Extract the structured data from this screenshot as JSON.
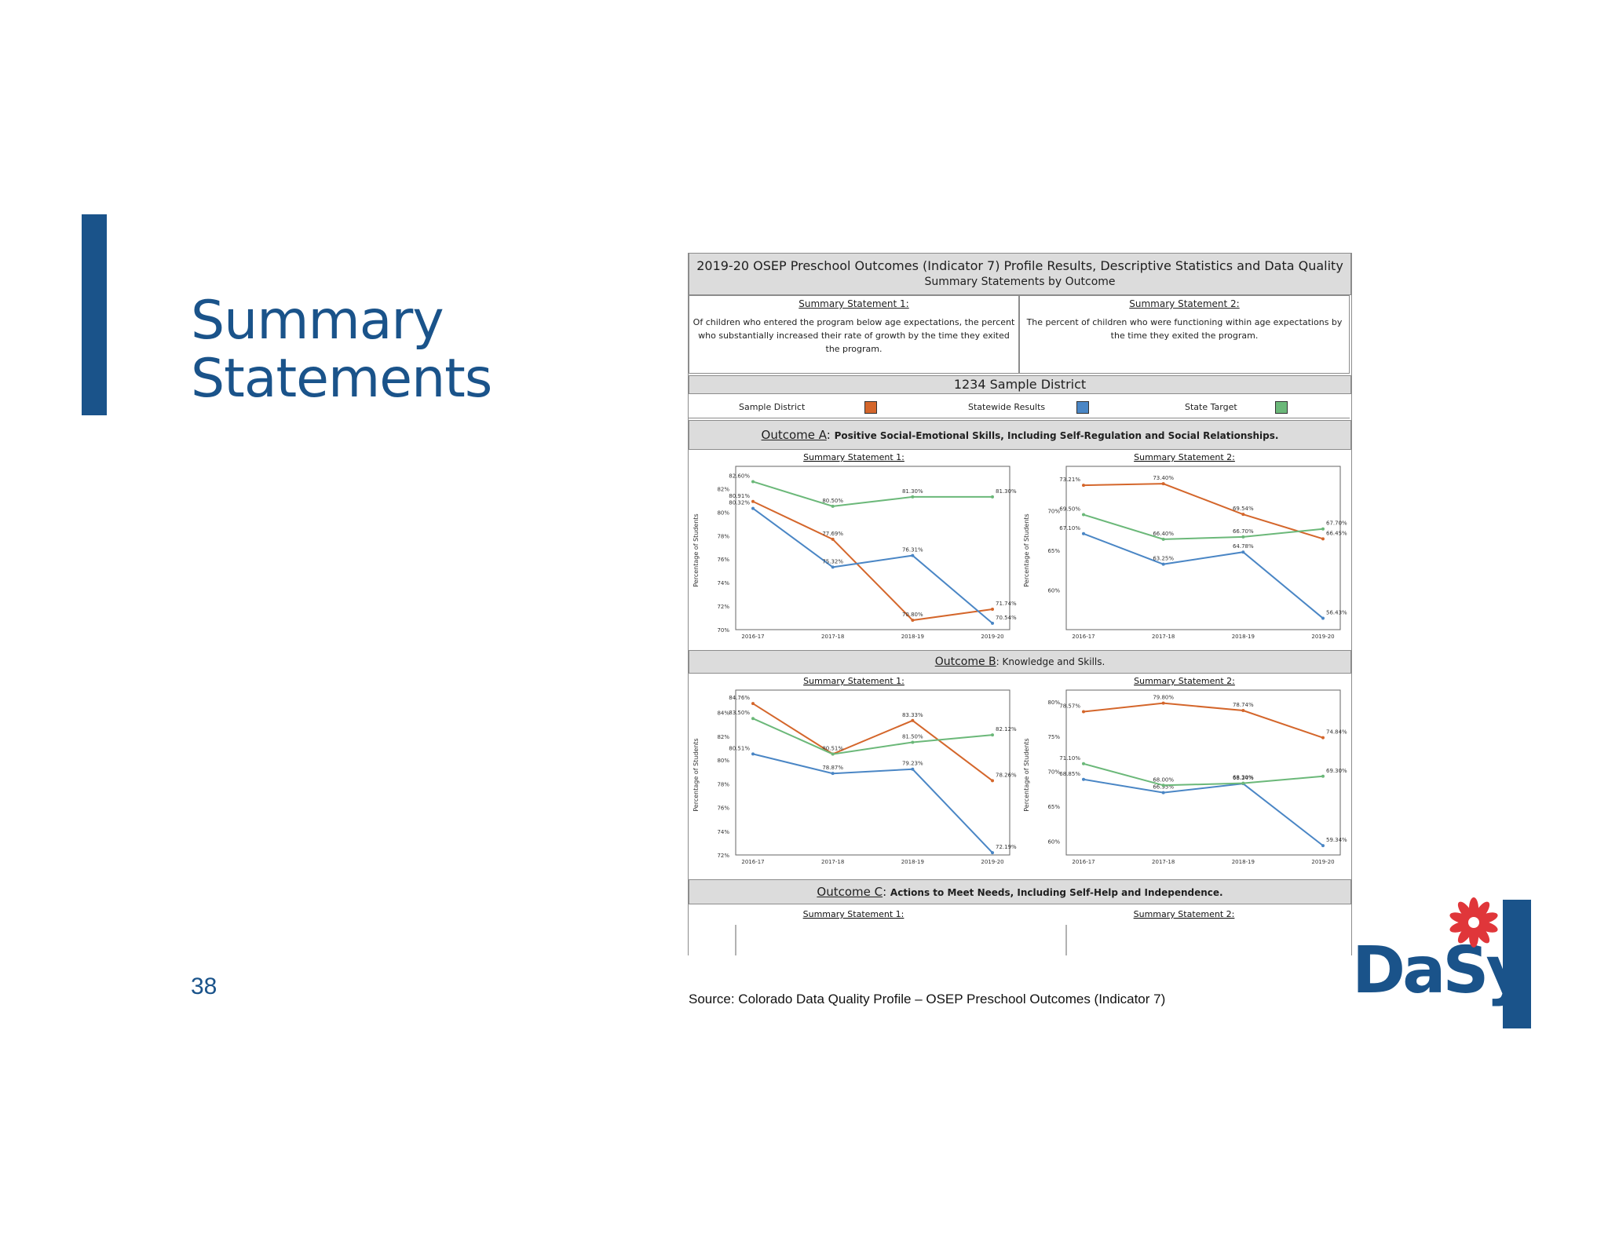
{
  "colors": {
    "brand_blue": "#1a538a",
    "district": "#d4662b",
    "statewide": "#4a86c5",
    "target": "#6bb879",
    "panel_gray": "#dcdcdc",
    "flower_red": "#e0363a"
  },
  "slide": {
    "title_line1": "Summary",
    "title_line2": "Statements",
    "page_number": "38",
    "source": "Source: Colorado Data Quality Profile – OSEP Preschool Outcomes (Indicator 7)",
    "logo_text": "DaSy"
  },
  "report": {
    "title_line1": "2019-20 OSEP Preschool Outcomes (Indicator 7) Profile Results, Descriptive Statistics and Data Quality",
    "title_line2": "Summary Statements by Outcome",
    "statement1_heading": "Summary Statement 1:",
    "statement1_text": "Of children who entered the program below age expectations, the percent who substantially increased their rate of growth by the time they exited the program.",
    "statement2_heading": "Summary Statement 2:",
    "statement2_text": "The percent of children who were functioning within age expectations by the time they exited the program.",
    "district_name": "1234 Sample District",
    "legend": [
      "Sample District",
      "Statewide Results",
      "State Target"
    ],
    "outcomeA_label": "Outcome A",
    "outcomeA_text": "Positive Social-Emotional Skills, Including Self-Regulation and Social Relationships.",
    "outcomeB_label": "Outcome B",
    "outcomeB_text": "Knowledge and Skills.",
    "outcomeC_label": "Outcome C",
    "outcomeC_text": "Actions to Meet Needs, Including Self-Help and Independence.",
    "ss1_label": "Summary Statement 1:",
    "ss2_label": "Summary Statement 2:"
  },
  "chart_data": [
    {
      "type": "line",
      "title": "Summary Statement 1:",
      "outcome": "Outcome A",
      "ylabel": "Percentage of Students",
      "categories": [
        "2016-17",
        "2017-18",
        "2018-19",
        "2019-20"
      ],
      "ylim": [
        70,
        83.5
      ],
      "yticks": [
        70,
        72,
        74,
        76,
        78,
        80,
        82
      ],
      "series": [
        {
          "name": "Sample District",
          "color": "#d4662b",
          "values": [
            80.91,
            77.69,
            70.8,
            71.74
          ],
          "labels": [
            "80.91%",
            "77.69%",
            "70.80%",
            "71.74%"
          ]
        },
        {
          "name": "Statewide Results",
          "color": "#4a86c5",
          "values": [
            80.32,
            75.32,
            76.31,
            70.54
          ],
          "labels": [
            "80.32%",
            "75.32%",
            "76.31%",
            "70.54%"
          ]
        },
        {
          "name": "State Target",
          "color": "#6bb879",
          "values": [
            82.6,
            80.5,
            81.3,
            81.3
          ],
          "labels": [
            "82.60%",
            "80.50%",
            "81.30%",
            "81.30%"
          ]
        }
      ]
    },
    {
      "type": "line",
      "title": "Summary Statement 2:",
      "outcome": "Outcome A",
      "ylabel": "Percentage of Students",
      "categories": [
        "2016-17",
        "2017-18",
        "2018-19",
        "2019-20"
      ],
      "ylim": [
        55,
        75
      ],
      "yticks": [
        60,
        65,
        70
      ],
      "series": [
        {
          "name": "Sample District",
          "color": "#d4662b",
          "values": [
            73.21,
            73.4,
            69.54,
            66.45
          ],
          "labels": [
            "73.21%",
            "73.40%",
            "69.54%",
            "66.45%"
          ]
        },
        {
          "name": "Statewide Results",
          "color": "#4a86c5",
          "values": [
            67.1,
            63.25,
            64.78,
            56.43
          ],
          "labels": [
            "67.10%",
            "63.25%",
            "64.78%",
            "56.43%"
          ]
        },
        {
          "name": "State Target",
          "color": "#6bb879",
          "values": [
            69.5,
            66.4,
            66.7,
            67.7
          ],
          "labels": [
            "69.50%",
            "66.40%",
            "66.70%",
            "67.70%"
          ]
        }
      ]
    },
    {
      "type": "line",
      "title": "Summary Statement 1:",
      "outcome": "Outcome B",
      "ylabel": "Percentage of Students",
      "categories": [
        "2016-17",
        "2017-18",
        "2018-19",
        "2019-20"
      ],
      "ylim": [
        72,
        85.5
      ],
      "yticks": [
        72,
        74,
        76,
        78,
        80,
        82,
        84
      ],
      "series": [
        {
          "name": "Sample District",
          "color": "#d4662b",
          "values": [
            84.76,
            80.51,
            83.33,
            78.26
          ],
          "labels": [
            "84.76%",
            "80.51%",
            "83.33%",
            "78.26%"
          ]
        },
        {
          "name": "Statewide Results",
          "color": "#4a86c5",
          "values": [
            80.51,
            78.87,
            79.23,
            72.19
          ],
          "labels": [
            "80.51%",
            "78.87%",
            "79.23%",
            "72.19%"
          ]
        },
        {
          "name": "State Target",
          "color": "#6bb879",
          "values": [
            83.5,
            80.5,
            81.5,
            82.12
          ],
          "labels": [
            "83.50%",
            "",
            "81.50%",
            "82.12%"
          ]
        }
      ]
    },
    {
      "type": "line",
      "title": "Summary Statement 2:",
      "outcome": "Outcome B",
      "ylabel": "Percentage of Students",
      "categories": [
        "2016-17",
        "2017-18",
        "2018-19",
        "2019-20"
      ],
      "ylim": [
        58,
        81
      ],
      "yticks": [
        60,
        65,
        70,
        75,
        80
      ],
      "series": [
        {
          "name": "Sample District",
          "color": "#d4662b",
          "values": [
            78.57,
            79.8,
            78.74,
            74.84
          ],
          "labels": [
            "78.57%",
            "79.80%",
            "78.74%",
            "74.84%"
          ]
        },
        {
          "name": "Statewide Results",
          "color": "#4a86c5",
          "values": [
            68.85,
            66.95,
            68.24,
            59.34
          ],
          "labels": [
            "68.85%",
            "66.95%",
            "68.24%",
            "59.34%"
          ]
        },
        {
          "name": "State Target",
          "color": "#6bb879",
          "values": [
            71.1,
            68.0,
            68.3,
            69.3
          ],
          "labels": [
            "71.10%",
            "68.00%",
            "68.30%",
            "69.30%"
          ]
        }
      ]
    }
  ]
}
